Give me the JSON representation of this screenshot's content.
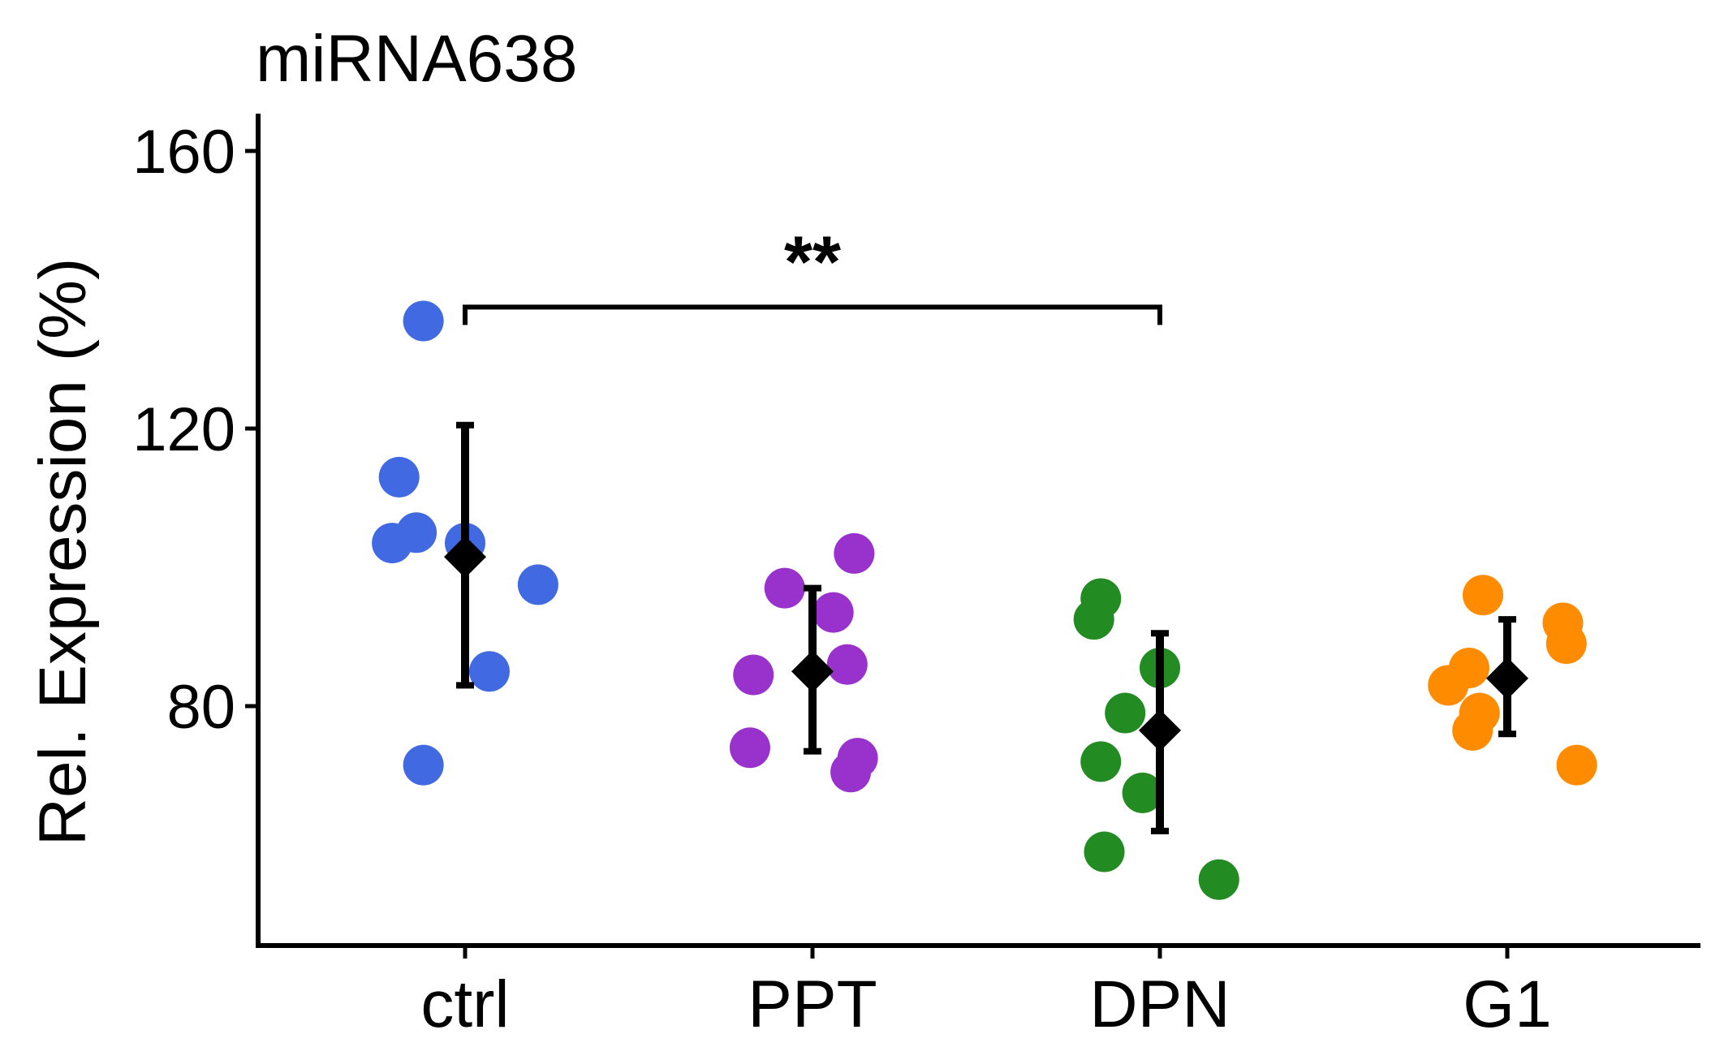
{
  "chart_data": {
    "type": "scatter",
    "title": "miRNA638",
    "xlabel": "",
    "ylabel": "Rel. Expression (%)",
    "ylim": [
      45,
      165
    ],
    "yticks": [
      80,
      120,
      160
    ],
    "categories": [
      "ctrl",
      "PPT",
      "DPN",
      "G1"
    ],
    "grid": false,
    "legend": "none",
    "series": [
      {
        "category": "ctrl",
        "color": "#4169E1",
        "points": [
          {
            "offset": -0.12,
            "y": 135.5
          },
          {
            "offset": -0.19,
            "y": 113.0
          },
          {
            "offset": -0.14,
            "y": 105.0
          },
          {
            "offset": -0.21,
            "y": 103.5
          },
          {
            "offset": 0.0,
            "y": 103.5
          },
          {
            "offset": 0.21,
            "y": 97.5
          },
          {
            "offset": 0.07,
            "y": 85.0
          },
          {
            "offset": -0.12,
            "y": 71.5
          }
        ],
        "mean": 101.5,
        "err_low": 83.0,
        "err_high": 120.5
      },
      {
        "category": "PPT",
        "color": "#9932CC",
        "points": [
          {
            "offset": 0.12,
            "y": 102.0
          },
          {
            "offset": -0.08,
            "y": 97.0
          },
          {
            "offset": 0.06,
            "y": 93.5
          },
          {
            "offset": 0.1,
            "y": 86.0
          },
          {
            "offset": -0.17,
            "y": 84.5
          },
          {
            "offset": -0.18,
            "y": 74.0
          },
          {
            "offset": 0.13,
            "y": 72.5
          },
          {
            "offset": 0.11,
            "y": 70.5
          }
        ],
        "mean": 85.0,
        "err_low": 73.5,
        "err_high": 97.0
      },
      {
        "category": "DPN",
        "color": "#228B22",
        "points": [
          {
            "offset": -0.17,
            "y": 95.5
          },
          {
            "offset": -0.19,
            "y": 92.5
          },
          {
            "offset": 0.0,
            "y": 85.5
          },
          {
            "offset": -0.1,
            "y": 79.0
          },
          {
            "offset": -0.17,
            "y": 72.0
          },
          {
            "offset": -0.05,
            "y": 67.5
          },
          {
            "offset": -0.16,
            "y": 59.0
          },
          {
            "offset": 0.17,
            "y": 55.0
          }
        ],
        "mean": 76.5,
        "err_low": 62.0,
        "err_high": 90.5
      },
      {
        "category": "G1",
        "color": "#FF8C00",
        "points": [
          {
            "offset": -0.07,
            "y": 96.0
          },
          {
            "offset": 0.16,
            "y": 92.0
          },
          {
            "offset": 0.17,
            "y": 89.0
          },
          {
            "offset": -0.11,
            "y": 85.5
          },
          {
            "offset": -0.17,
            "y": 83.0
          },
          {
            "offset": -0.08,
            "y": 79.0
          },
          {
            "offset": -0.1,
            "y": 76.5
          },
          {
            "offset": 0.2,
            "y": 71.5
          }
        ],
        "mean": 84.0,
        "err_low": 76.0,
        "err_high": 92.5
      }
    ],
    "annotations": [
      {
        "type": "significance-bracket",
        "from": "ctrl",
        "to": "DPN",
        "y": 137.5,
        "label": "**"
      }
    ]
  }
}
